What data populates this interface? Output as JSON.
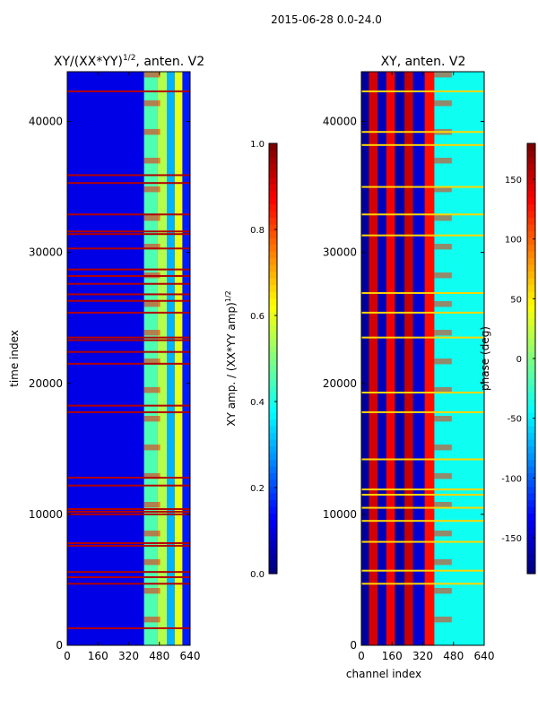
{
  "figure": {
    "suptitle": "2015-06-28 0.0-24.0",
    "shared_xlabel": "channel index"
  },
  "chart_data": [
    {
      "type": "heatmap",
      "title_main": "XY/(XX*YY)",
      "title_exp": "1/2",
      "title_rest": ", anten. V2",
      "xlabel": "",
      "ylabel": "time index",
      "xlim": [
        0,
        640
      ],
      "ylim": [
        0,
        43800
      ],
      "xticks": [
        0,
        160,
        320,
        480,
        640
      ],
      "yticks": [
        0,
        10000,
        20000,
        30000,
        40000
      ],
      "colorbar": {
        "label_main": "XY amp. / (XX*YY amp)",
        "label_exp": "1/2",
        "range": [
          0.0,
          1.0
        ],
        "ticks": [
          "0.0",
          "0.2",
          "0.4",
          "0.6",
          "0.8",
          "1.0"
        ],
        "tick_values": [
          0.0,
          0.2,
          0.4,
          0.6,
          0.8,
          1.0
        ]
      },
      "colormap": "jet",
      "bands": [
        {
          "from": 0,
          "to": 400,
          "value": 0.1
        },
        {
          "from": 400,
          "to": 470,
          "value": 0.45
        },
        {
          "from": 470,
          "to": 520,
          "value": 0.55
        },
        {
          "from": 520,
          "to": 560,
          "value": 0.3
        },
        {
          "from": 560,
          "to": 600,
          "value": 0.6
        },
        {
          "from": 600,
          "to": 640,
          "value": 0.15
        }
      ],
      "flag_rows": [
        1300,
        4700,
        5200,
        5600,
        7600,
        7800,
        10000,
        10200,
        10400,
        12200,
        12800,
        17800,
        18300,
        21500,
        22400,
        23300,
        23500,
        25400,
        26300,
        26800,
        27600,
        28200,
        28700,
        30300,
        31400,
        31600,
        32900,
        35300,
        35900,
        42300
      ],
      "flag_value": 0.95
    },
    {
      "type": "heatmap",
      "title_main": "XY, anten. V2",
      "xlabel": "channel index",
      "ylabel": "",
      "xlim": [
        0,
        640
      ],
      "ylim": [
        0,
        43800
      ],
      "xticks": [
        0,
        160,
        320,
        480,
        640
      ],
      "yticks": [
        0,
        10000,
        20000,
        30000,
        40000
      ],
      "colorbar": {
        "label_main": "phase (deg)",
        "range": [
          -180,
          180
        ],
        "ticks": [
          "-150",
          "-100",
          "-50",
          "0",
          "50",
          "100",
          "150"
        ],
        "tick_values": [
          -150,
          -100,
          -50,
          0,
          50,
          100,
          150
        ]
      },
      "colormap": "jet",
      "stripes": [
        {
          "from": 0,
          "to": 40,
          "value": -170
        },
        {
          "from": 40,
          "to": 85,
          "value": 150
        },
        {
          "from": 85,
          "to": 130,
          "value": -160
        },
        {
          "from": 130,
          "to": 175,
          "value": 140
        },
        {
          "from": 175,
          "to": 225,
          "value": -165
        },
        {
          "from": 225,
          "to": 270,
          "value": 155
        },
        {
          "from": 270,
          "to": 330,
          "value": -150
        },
        {
          "from": 330,
          "to": 380,
          "value": 130
        },
        {
          "from": 380,
          "to": 640,
          "value": -40
        }
      ],
      "flag_rows": [
        4700,
        5700,
        7900,
        9500,
        10500,
        11500,
        11900,
        14200,
        17800,
        19300,
        23500,
        25400,
        26900,
        31300,
        32900,
        35000,
        38200,
        39200,
        42300
      ],
      "flag_value": 60
    }
  ]
}
